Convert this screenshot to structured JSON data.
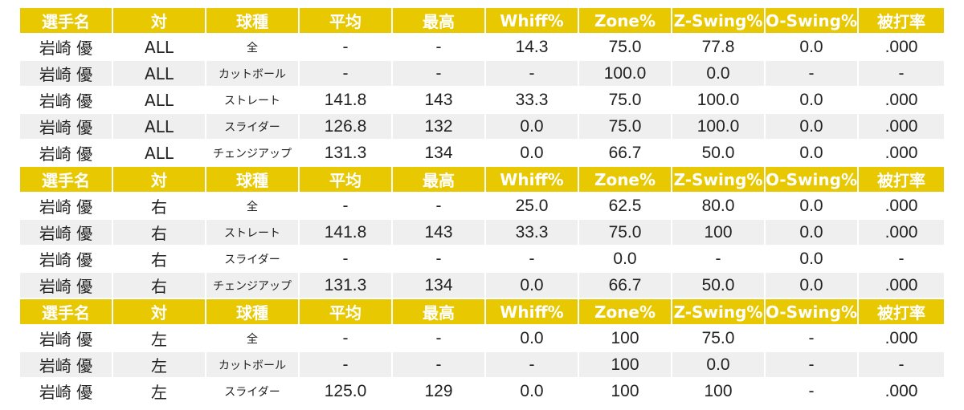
{
  "colors": {
    "header_bg": "#e8c800",
    "header_text": "#ffffff",
    "row_alt_bg": "#efefef",
    "row_bg": "#ffffff"
  },
  "header": [
    "選手名",
    "対",
    "球種",
    "平均",
    "最高",
    "Whiff%",
    "Zone%",
    "Z-Swing%",
    "O-Swing%",
    "被打率"
  ],
  "sections": [
    {
      "rows": [
        [
          "岩崎 優",
          "ALL",
          "全",
          "-",
          "-",
          "14.3",
          "75.0",
          "77.8",
          "0.0",
          ".000"
        ],
        [
          "岩崎 優",
          "ALL",
          "カットボール",
          "-",
          "-",
          "-",
          "100.0",
          "0.0",
          "-",
          "-"
        ],
        [
          "岩崎 優",
          "ALL",
          "ストレート",
          "141.8",
          "143",
          "33.3",
          "75.0",
          "100.0",
          "0.0",
          ".000"
        ],
        [
          "岩崎 優",
          "ALL",
          "スライダー",
          "126.8",
          "132",
          "0.0",
          "75.0",
          "100.0",
          "0.0",
          ".000"
        ],
        [
          "岩崎 優",
          "ALL",
          "チェンジアップ",
          "131.3",
          "134",
          "0.0",
          "66.7",
          "50.0",
          "0.0",
          ".000"
        ]
      ]
    },
    {
      "rows": [
        [
          "岩崎 優",
          "右",
          "全",
          "-",
          "-",
          "25.0",
          "62.5",
          "80.0",
          "0.0",
          ".000"
        ],
        [
          "岩崎 優",
          "右",
          "ストレート",
          "141.8",
          "143",
          "33.3",
          "75.0",
          "100",
          "0.0",
          ".000"
        ],
        [
          "岩崎 優",
          "右",
          "スライダー",
          "-",
          "-",
          "-",
          "0.0",
          "-",
          "0.0",
          "-"
        ],
        [
          "岩崎 優",
          "右",
          "チェンジアップ",
          "131.3",
          "134",
          "0.0",
          "66.7",
          "50.0",
          "0.0",
          ".000"
        ]
      ]
    },
    {
      "rows": [
        [
          "岩崎 優",
          "左",
          "全",
          "-",
          "-",
          "0.0",
          "100",
          "75.0",
          "-",
          ".000"
        ],
        [
          "岩崎 優",
          "左",
          "カットボール",
          "-",
          "-",
          "-",
          "100",
          "0.0",
          "-",
          "-"
        ],
        [
          "岩崎 優",
          "左",
          "スライダー",
          "125.0",
          "129",
          "0.0",
          "100",
          "100",
          "-",
          ".000"
        ]
      ]
    }
  ]
}
